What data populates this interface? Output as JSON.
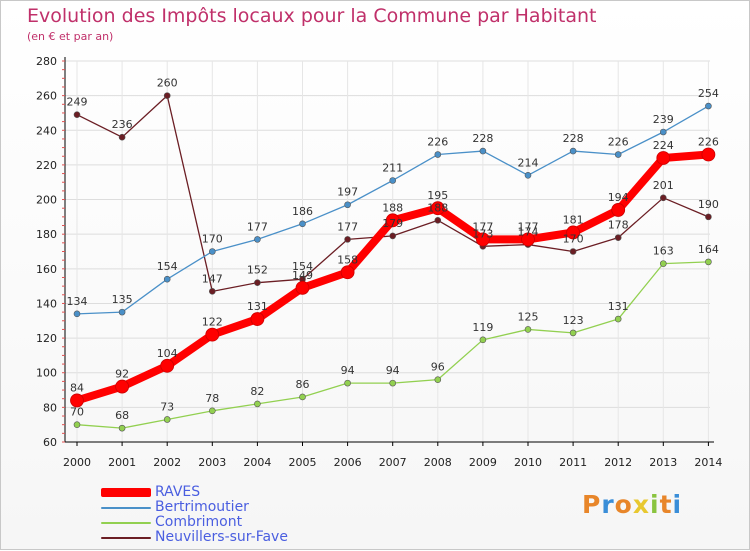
{
  "chart_data": {
    "type": "line",
    "title": "Evolution des Impôts locaux pour la Commune par Habitant",
    "subtitle": "(en € et par an)",
    "xlabel": "",
    "ylabel": "",
    "ylim": [
      60,
      280
    ],
    "yticks": [
      60,
      80,
      100,
      120,
      140,
      160,
      180,
      200,
      220,
      240,
      260,
      280
    ],
    "categories": [
      "2000",
      "2001",
      "2002",
      "2003",
      "2004",
      "2005",
      "2006",
      "2007",
      "2008",
      "2009",
      "2010",
      "2011",
      "2012",
      "2013",
      "2014"
    ],
    "series": [
      {
        "key": "raves",
        "name": "RAVES",
        "color": "#ff0000",
        "values": [
          84,
          92,
          104,
          122,
          131,
          149,
          158,
          188,
          195,
          177,
          177,
          181,
          194,
          224,
          226
        ],
        "labels": [
          "84",
          "92",
          "104",
          "122",
          "131",
          "149",
          "158",
          "188",
          "195",
          "177",
          "177",
          "181",
          "194",
          "224",
          "226"
        ]
      },
      {
        "key": "bert",
        "name": "Bertrimoutier",
        "color": "#4a90c8",
        "values": [
          134,
          135,
          154,
          170,
          177,
          186,
          197,
          211,
          226,
          228,
          214,
          228,
          226,
          239,
          254
        ],
        "labels": [
          "134",
          "135",
          "154",
          "170",
          "177",
          "186",
          "197",
          "211",
          "226",
          "228",
          "214",
          "228",
          "226",
          "239",
          "254"
        ]
      },
      {
        "key": "comb",
        "name": "Combrimont",
        "color": "#92d050",
        "values": [
          70,
          68,
          73,
          78,
          82,
          86,
          94,
          94,
          96,
          119,
          125,
          123,
          131,
          163,
          164
        ],
        "labels": [
          "70",
          "68",
          "73",
          "78",
          "82",
          "86",
          "94",
          "94",
          "96",
          "119",
          "125",
          "123",
          "131",
          "163",
          "164"
        ]
      },
      {
        "key": "neuv",
        "name": "Neuvillers-sur-Fave",
        "color": "#6b1e24",
        "values": [
          249,
          236,
          260,
          147,
          152,
          154,
          177,
          179,
          188,
          173,
          174,
          170,
          178,
          201,
          190
        ],
        "labels": [
          "249",
          "236",
          "260",
          "147",
          "152",
          "154",
          "177",
          "179",
          "188",
          "173",
          "174",
          "170",
          "178",
          "201",
          "190"
        ]
      }
    ],
    "legend_position": "bottom-left",
    "grid": true
  },
  "logo": {
    "text": "Proxiti",
    "colors": [
      "#e8862a",
      "#3a8ed8",
      "#e8862a",
      "#e8c830",
      "#8ac43f",
      "#e8862a",
      "#3a8ed8"
    ]
  }
}
